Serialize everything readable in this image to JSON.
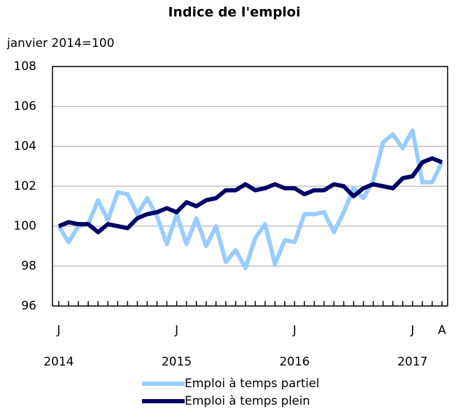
{
  "chart_data": {
    "type": "line",
    "title": "Indice de l'emploi",
    "subtitle": "janvier 2014=100",
    "categories": [
      "J",
      null,
      null,
      null,
      null,
      null,
      null,
      null,
      null,
      null,
      null,
      null,
      "J",
      null,
      null,
      null,
      null,
      null,
      null,
      null,
      null,
      null,
      null,
      null,
      "J",
      null,
      null,
      null,
      null,
      null,
      null,
      null,
      null,
      null,
      null,
      null,
      "J",
      null,
      null,
      "A"
    ],
    "years": [
      "2014",
      null,
      null,
      null,
      null,
      null,
      null,
      null,
      null,
      null,
      null,
      null,
      "2015",
      null,
      null,
      null,
      null,
      null,
      null,
      null,
      null,
      null,
      null,
      null,
      "2016",
      null,
      null,
      null,
      null,
      null,
      null,
      null,
      null,
      null,
      null,
      null,
      "2017",
      null,
      null,
      null
    ],
    "series": [
      {
        "name": "Emploi à temps partiel",
        "color": "#99ccff",
        "values": [
          100.0,
          99.2,
          100.0,
          100.1,
          101.3,
          100.3,
          101.7,
          101.6,
          100.6,
          101.4,
          100.5,
          99.1,
          100.6,
          99.1,
          100.4,
          99.0,
          100.0,
          98.2,
          98.8,
          97.9,
          99.4,
          100.1,
          98.1,
          99.3,
          99.2,
          100.6,
          100.6,
          100.7,
          99.7,
          100.7,
          101.9,
          101.4,
          102.3,
          104.2,
          104.6,
          103.9,
          104.8,
          102.2,
          102.2,
          103.2
        ]
      },
      {
        "name": "Emploi à temps plein",
        "color": "#000066",
        "values": [
          100.0,
          100.2,
          100.1,
          100.1,
          99.7,
          100.1,
          100.0,
          99.9,
          100.4,
          100.6,
          100.7,
          100.9,
          100.7,
          101.2,
          101.0,
          101.3,
          101.4,
          101.8,
          101.8,
          102.1,
          101.8,
          101.9,
          102.1,
          101.9,
          101.9,
          101.6,
          101.8,
          101.8,
          102.1,
          102.0,
          101.5,
          101.9,
          102.1,
          102.0,
          101.9,
          102.4,
          102.5,
          103.2,
          103.4,
          103.2
        ]
      }
    ],
    "ylim": [
      96,
      108
    ],
    "yticks": [
      96,
      98,
      100,
      102,
      104,
      106,
      108
    ],
    "grid": true
  }
}
